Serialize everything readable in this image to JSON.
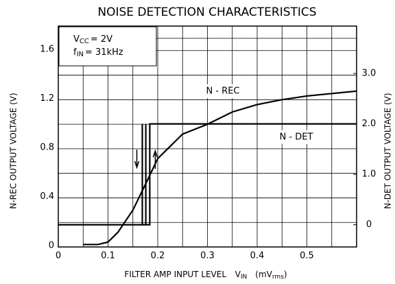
{
  "chart_data": {
    "type": "line",
    "title": "NOISE DETECTION CHARACTERISTICS",
    "x_label": [
      "FILTER AMP INPUT LEVEL",
      "V",
      "IN",
      "(mV",
      "rms",
      ")"
    ],
    "y_label": "N-REC OUTPUT VOLTAGE   (V)",
    "y2_label": "N-DET OUTPUT VOLTAGE   (V)",
    "conditions": [
      [
        "V",
        "CC",
        "= 2V"
      ],
      [
        "f",
        "IN",
        "= 31kHz"
      ]
    ],
    "xlim": [
      0,
      0.6
    ],
    "xticks": [
      0,
      0.1,
      0.2,
      0.3,
      0.4,
      0.5
    ],
    "ylim": [
      0,
      1.8
    ],
    "yticks": [
      0,
      0.4,
      0.8,
      1.2,
      1.6
    ],
    "y2lim": [
      -0.44,
      3.94
    ],
    "y2ticks": [
      0,
      {
        "value": 1,
        "label": "1.0"
      },
      {
        "value": 2,
        "label": "2.0"
      },
      {
        "value": 3,
        "label": "3.0"
      }
    ],
    "grid": true,
    "series": [
      {
        "name": "N - REC",
        "color": "#000000",
        "x": [
          0.05,
          0.08,
          0.1,
          0.12,
          0.15,
          0.18,
          0.2,
          0.25,
          0.3,
          0.35,
          0.4,
          0.45,
          0.5,
          0.6
        ],
        "values": [
          0.02,
          0.02,
          0.04,
          0.12,
          0.3,
          0.55,
          0.72,
          0.92,
          1.0,
          1.1,
          1.16,
          1.2,
          1.23,
          1.27
        ]
      },
      {
        "name": "N - DET",
        "color": "#000000",
        "axis": "y2",
        "x": [
          0,
          0.184,
          0.184,
          0.6,
          null,
          0.169,
          0.169,
          null,
          0.176,
          0.176
        ],
        "values": [
          0,
          0,
          2,
          2,
          null,
          2,
          0,
          null,
          2,
          0
        ]
      }
    ]
  }
}
